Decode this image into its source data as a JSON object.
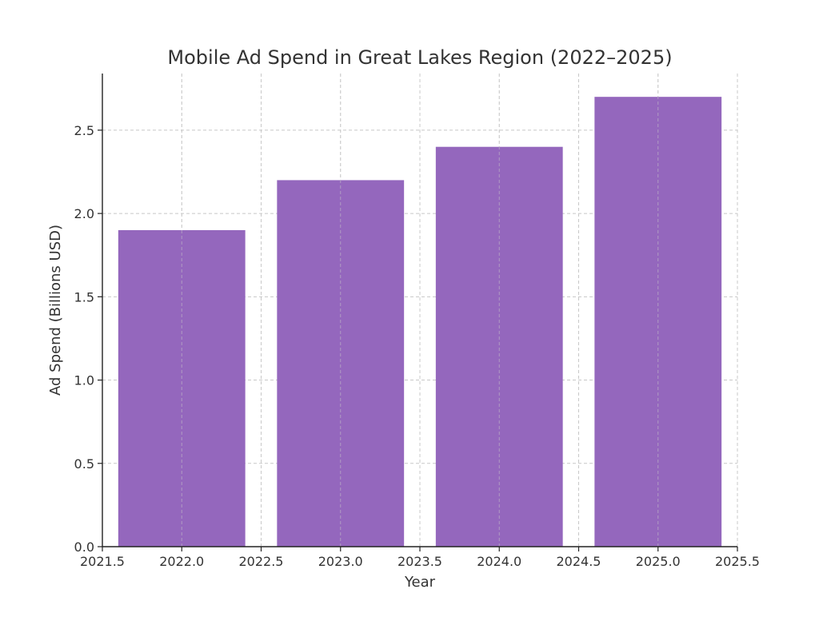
{
  "chart_data": {
    "type": "bar",
    "title": "Mobile Ad Spend in Great Lakes Region (2022–2025)",
    "xlabel": "Year",
    "ylabel": "Ad Spend (Billions USD)",
    "x": [
      2022,
      2023,
      2024,
      2025
    ],
    "values": [
      1.9,
      2.2,
      2.4,
      2.7
    ],
    "bar_width": 0.8,
    "xlim": [
      2021.5,
      2025.5
    ],
    "ylim": [
      0.0,
      2.84
    ],
    "x_ticks": [
      2021.5,
      2022.0,
      2022.5,
      2023.0,
      2023.5,
      2024.0,
      2024.5,
      2025.0,
      2025.5
    ],
    "x_tick_labels": [
      "2021.5",
      "2022.0",
      "2022.5",
      "2023.0",
      "2023.5",
      "2024.0",
      "2024.5",
      "2025.0",
      "2025.5"
    ],
    "y_ticks": [
      0.0,
      0.5,
      1.0,
      1.5,
      2.0,
      2.5
    ],
    "y_tick_labels": [
      "0.0",
      "0.5",
      "1.0",
      "1.5",
      "2.0",
      "2.5"
    ],
    "grid": true,
    "bar_color": "#9467bd"
  }
}
